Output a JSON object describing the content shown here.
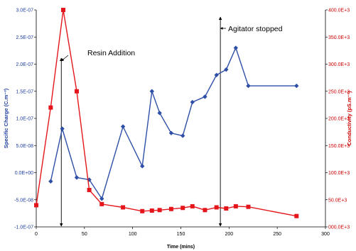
{
  "chart_data": {
    "type": "line",
    "title": "",
    "xlabel": "Time (mins)",
    "ylabel": "Specific Charge (C.m⁻³)",
    "y2label": "Conductivity (pS.m⁻¹)",
    "xlim": [
      0,
      300
    ],
    "ylim": [
      -1e-07,
      3e-07
    ],
    "y2lim": [
      0,
      400000
    ],
    "x_ticks": [
      "0",
      "50",
      "100",
      "150",
      "200",
      "250",
      "300"
    ],
    "y_ticks": [
      "-1.0E-07",
      "-5.0E-08",
      "0.0E+00",
      "5.0E-08",
      "1.0E-07",
      "1.5E-07",
      "2.0E-07",
      "2.5E-07",
      "3.0E-07"
    ],
    "y2_ticks": [
      "000.0E+3",
      "50.0E+3",
      "100.0E+3",
      "150.0E+3",
      "200.0E+3",
      "250.0E+3",
      "300.0E+3",
      "350.0E+3",
      "400.0E+3"
    ],
    "grid": false,
    "series": [
      {
        "axis": "left",
        "color": "#2e4fa6",
        "marker": "diamond",
        "x": [
          15,
          27,
          42,
          55,
          68,
          90,
          110,
          120,
          128,
          140,
          152,
          162,
          175,
          187,
          197,
          207,
          220,
          270
        ],
        "y": [
          -1.6e-08,
          8.1e-08,
          -9e-09,
          -1.3e-08,
          -4.8e-08,
          8.5e-08,
          1.2e-08,
          1.5e-07,
          1.1e-07,
          7.3e-08,
          6.8e-08,
          1.3e-07,
          1.4e-07,
          1.8e-07,
          1.9e-07,
          2.3e-07,
          1.6e-07,
          1.6e-07
        ]
      },
      {
        "axis": "right",
        "color": "#e4161b",
        "marker": "square",
        "x": [
          0,
          15,
          28,
          42,
          55,
          68,
          90,
          110,
          120,
          128,
          140,
          152,
          162,
          175,
          187,
          197,
          207,
          220,
          270
        ],
        "y": [
          40000,
          220000,
          400000,
          250000,
          68000,
          42000,
          36000,
          29000,
          30000,
          31000,
          33000,
          35000,
          38000,
          31000,
          36000,
          34000,
          38000,
          37000,
          20000
        ]
      }
    ],
    "annotations": [
      {
        "text": "Resin Addition",
        "x": 26
      },
      {
        "text": "Agitator stopped",
        "x": 191
      }
    ]
  }
}
